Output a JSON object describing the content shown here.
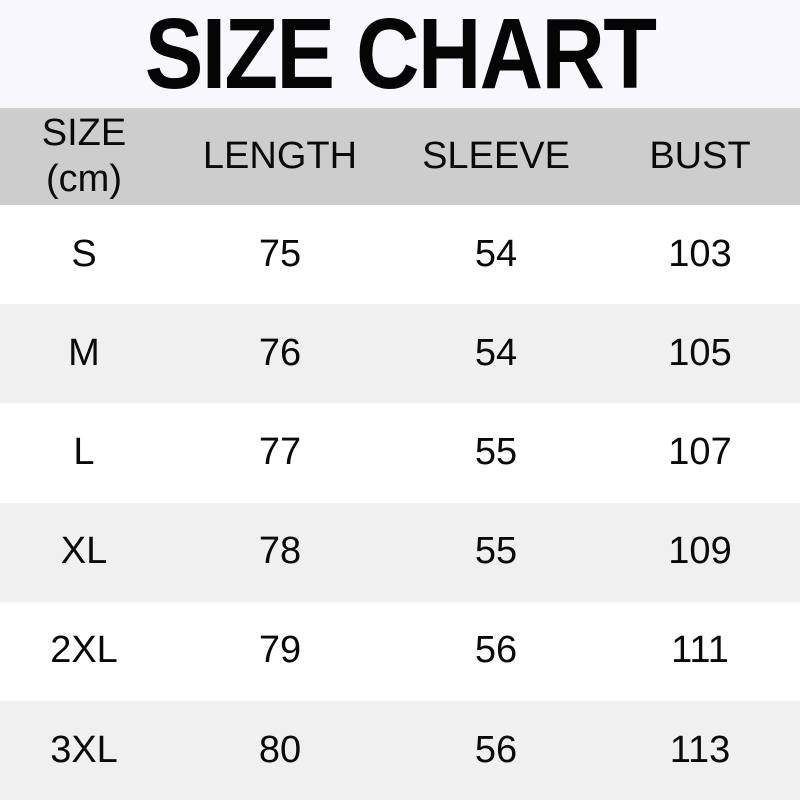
{
  "title": "SIZE CHART",
  "header": {
    "size_line1": "SIZE",
    "size_line2": "(cm)",
    "length": "LENGTH",
    "sleeve": "SLEEVE",
    "bust": "BUST"
  },
  "chart_data": {
    "type": "table",
    "title": "SIZE CHART",
    "columns": [
      "SIZE (cm)",
      "LENGTH",
      "SLEEVE",
      "BUST"
    ],
    "rows": [
      [
        "S",
        75,
        54,
        103
      ],
      [
        "M",
        76,
        54,
        105
      ],
      [
        "L",
        77,
        55,
        107
      ],
      [
        "XL",
        78,
        55,
        109
      ],
      [
        "2XL",
        79,
        56,
        111
      ],
      [
        "3XL",
        80,
        56,
        113
      ]
    ]
  },
  "colors": {
    "page_bg": "#f8f7fc",
    "header_bg": "#cdcdcd",
    "row_bg": "#ffffff",
    "row_alt_bg": "#f0f0f0",
    "text": "#050505"
  }
}
